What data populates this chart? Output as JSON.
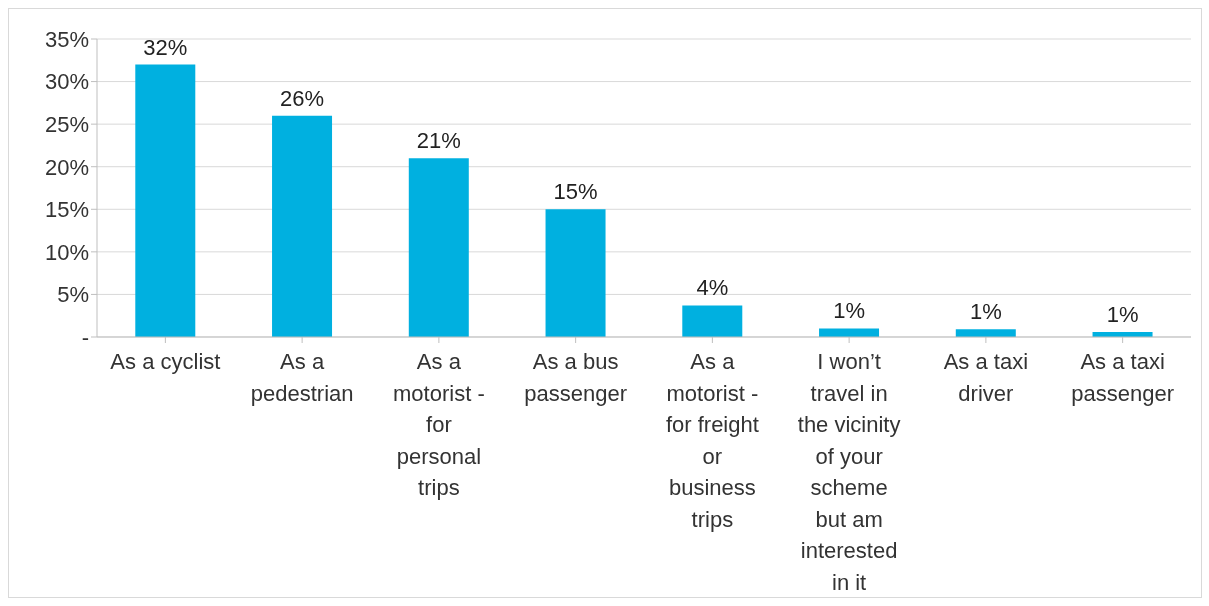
{
  "chart_data": {
    "type": "bar",
    "categories": [
      "As a cyclist",
      "As a pedestrian",
      "As a motorist - for personal trips",
      "As a bus passenger",
      "As a motorist - for freight or business trips",
      "I won’t travel in the vicinity of your scheme but am interested in it",
      "As a taxi driver",
      "As a taxi passenger"
    ],
    "values": [
      32,
      26,
      21,
      15,
      3.7,
      1,
      0.9,
      0.6
    ],
    "value_labels": [
      "32%",
      "26%",
      "21%",
      "15%",
      "4%",
      "1%",
      "1%",
      "1%"
    ],
    "color": "#00b0e0",
    "ylim": [
      0,
      35
    ],
    "yticks": [
      {
        "value": 0,
        "label": "-"
      },
      {
        "value": 5,
        "label": "5%"
      },
      {
        "value": 10,
        "label": "10%"
      },
      {
        "value": 15,
        "label": "15%"
      },
      {
        "value": 20,
        "label": "20%"
      },
      {
        "value": 25,
        "label": "25%"
      },
      {
        "value": 30,
        "label": "30%"
      },
      {
        "value": 35,
        "label": "35%"
      }
    ],
    "grid": "y"
  }
}
